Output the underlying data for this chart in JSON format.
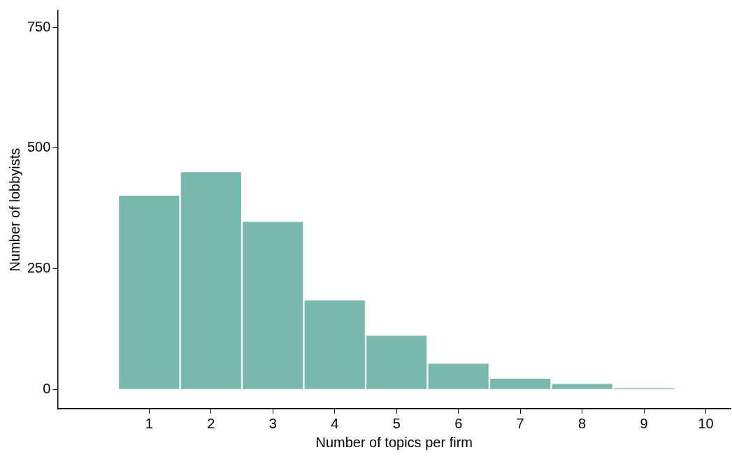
{
  "chart_data": {
    "type": "histogram",
    "xlabel": "Number of topics per firm",
    "ylabel": "Number of lobbyists",
    "bins": [
      0.5,
      1.5,
      2.5,
      3.5,
      4.5,
      5.5,
      6.5,
      7.5,
      8.5,
      9.5
    ],
    "values": [
      403,
      452,
      349,
      186,
      113,
      55,
      24,
      13,
      3
    ],
    "color": "#79b8ac",
    "xlim": [
      -0.48,
      10.4
    ],
    "xticks": [
      1,
      2,
      3,
      4,
      5,
      6,
      7,
      8,
      9,
      10
    ],
    "ylim": [
      -40,
      785
    ],
    "yticks": [
      0,
      250,
      500,
      750
    ],
    "grid": false,
    "legend": false
  }
}
